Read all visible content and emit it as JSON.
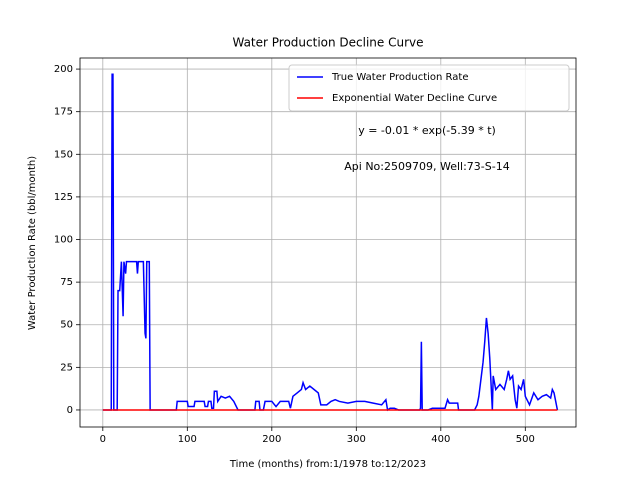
{
  "chart_data": {
    "type": "line",
    "title": "Water Production Decline Curve",
    "x_label": "Time (months) from:1/1978 to:12/2023",
    "y_label": "Water Production Rate (bbl/month)",
    "annotations": [
      "y = -0.01 * exp(-5.39 * t)",
      "Api No:2509709, Well:73-S-14"
    ],
    "xlim": [
      -27,
      560
    ],
    "ylim": [
      -10,
      206.5
    ],
    "xticks": [
      0,
      100,
      200,
      300,
      400,
      500
    ],
    "yticks": [
      0,
      25,
      50,
      75,
      100,
      125,
      150,
      175,
      200
    ],
    "grid": true,
    "legend": "upper right",
    "series": [
      {
        "name": "True Water Production Rate",
        "color": "#0000ff",
        "x": [
          0,
          10,
          11,
          12,
          13,
          17,
          18,
          20,
          22,
          24,
          25,
          27,
          28,
          40,
          41,
          42,
          48,
          50,
          51,
          52,
          55,
          56,
          87,
          88,
          100,
          101,
          108,
          109,
          120,
          121,
          124,
          125,
          128,
          129,
          131,
          132,
          135,
          136,
          140,
          145,
          150,
          155,
          160,
          180,
          181,
          185,
          186,
          190,
          192,
          200,
          205,
          210,
          215,
          220,
          222,
          225,
          230,
          235,
          237,
          240,
          245,
          250,
          255,
          258,
          265,
          270,
          275,
          280,
          290,
          300,
          310,
          320,
          330,
          335,
          337,
          340,
          345,
          350,
          375,
          376,
          377,
          378,
          385,
          390,
          400,
          405,
          408,
          410,
          415,
          420,
          421,
          440,
          443,
          445,
          448,
          450,
          452,
          454,
          456,
          458,
          460,
          461,
          462,
          465,
          470,
          475,
          478,
          480,
          482,
          485,
          488,
          490,
          492,
          495,
          498,
          500,
          505,
          510,
          515,
          520,
          525,
          530,
          532,
          534,
          536,
          538
        ],
        "values": [
          0,
          0,
          197,
          197,
          0,
          0,
          70,
          70,
          87,
          55,
          87,
          80,
          87,
          87,
          80,
          87,
          87,
          45,
          42,
          87,
          87,
          0,
          0,
          5,
          5,
          2,
          2,
          5,
          5,
          2,
          2,
          5,
          5,
          1,
          1,
          11,
          11,
          5,
          8,
          7,
          8,
          5,
          0,
          0,
          5,
          5,
          0,
          0,
          5,
          5,
          2,
          5,
          5,
          5,
          1,
          8,
          10,
          12,
          16,
          12,
          14,
          12,
          10,
          3,
          3,
          5,
          6,
          5,
          4,
          5,
          5,
          4,
          3,
          6,
          0,
          1,
          1,
          0,
          0,
          1,
          40,
          0,
          0,
          1,
          1,
          1,
          6,
          4,
          4,
          4,
          0,
          0,
          3,
          8,
          20,
          28,
          40,
          54,
          45,
          30,
          10,
          0,
          20,
          12,
          15,
          12,
          18,
          23,
          18,
          20,
          6,
          1,
          14,
          12,
          18,
          8,
          3,
          10,
          6,
          8,
          9,
          7,
          12,
          10,
          5,
          0
        ]
      },
      {
        "name": "Exponential Water Decline Curve",
        "color": "#ff0000",
        "x": [
          0,
          538
        ],
        "values": [
          -0.01,
          0
        ]
      }
    ]
  }
}
